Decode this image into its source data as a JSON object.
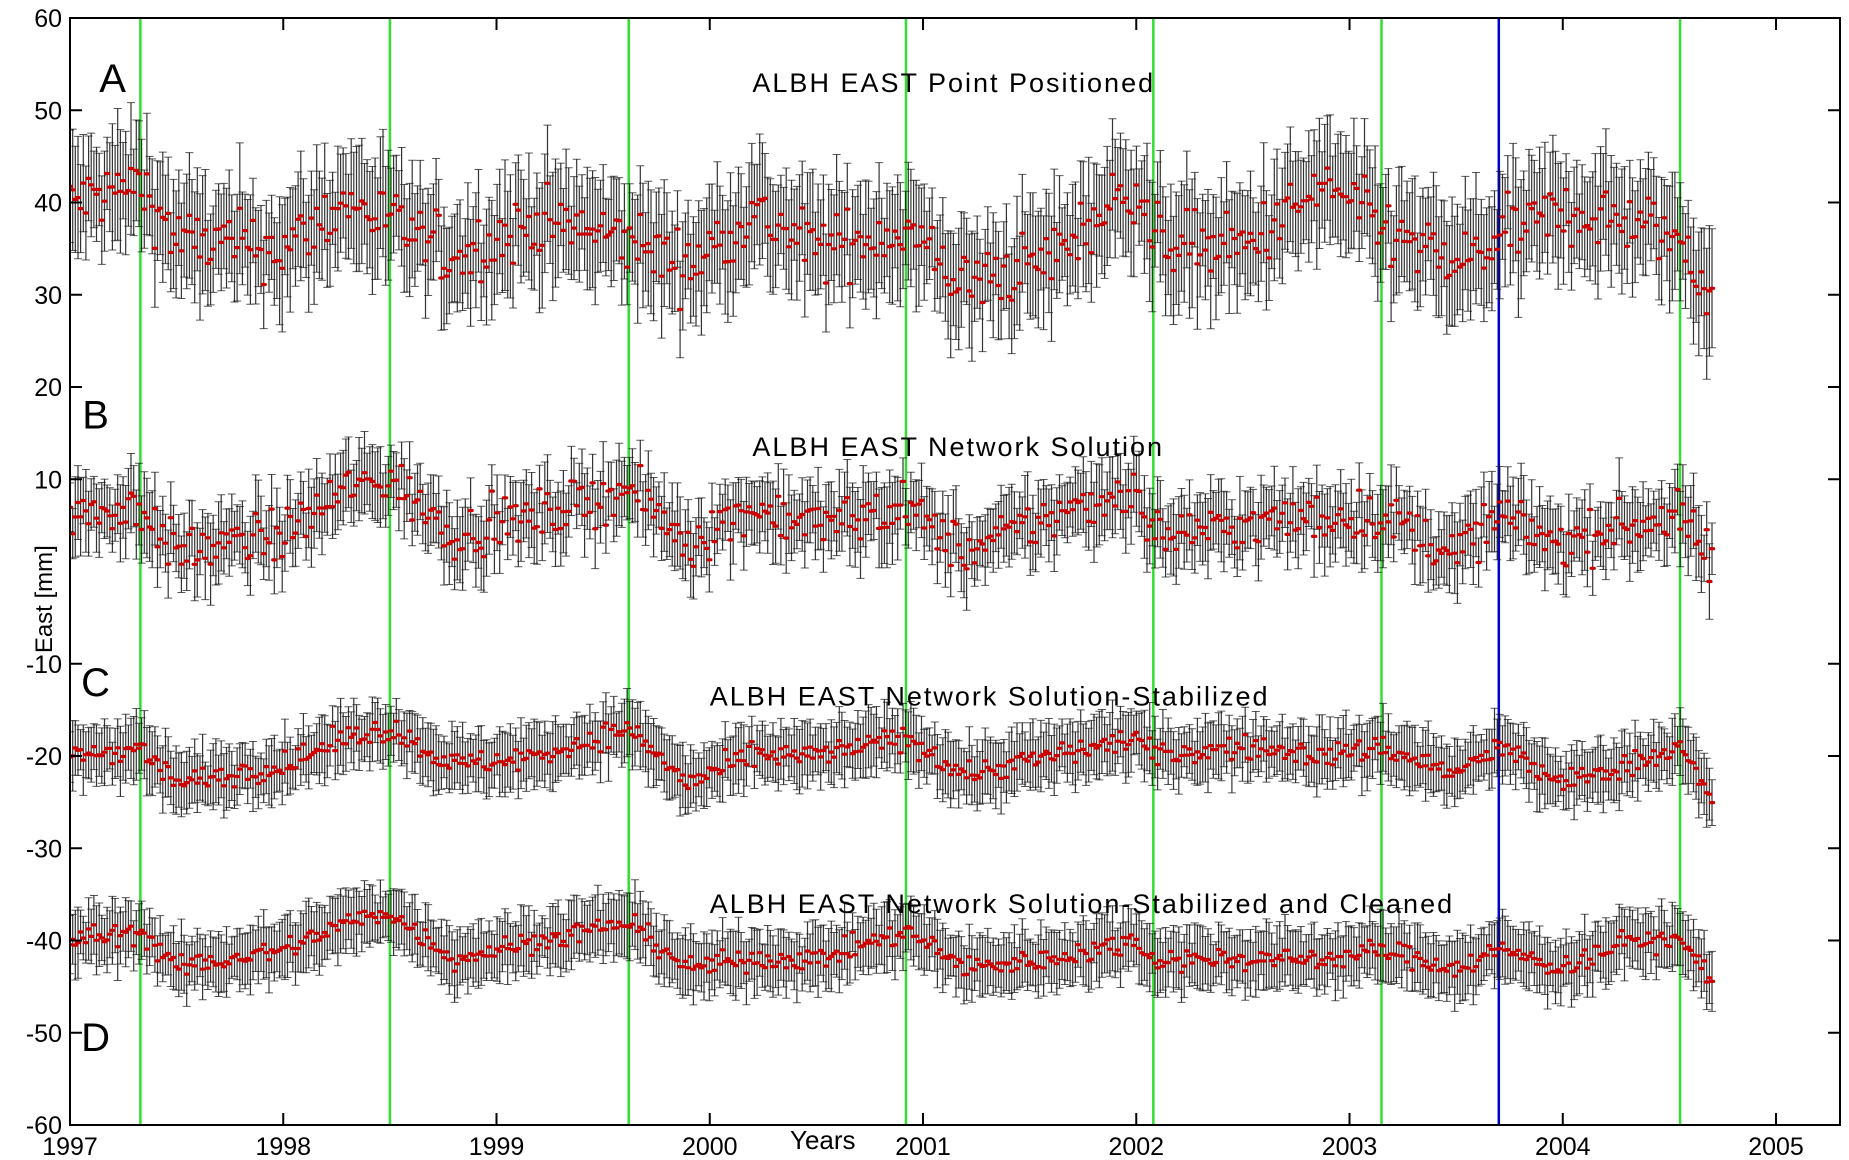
{
  "chart_data": {
    "type": "scatter",
    "xlabel": "Years",
    "ylabel": "East [mm]",
    "xlim": [
      1997,
      2005.3
    ],
    "ylim": [
      -60,
      60
    ],
    "xticks": [
      1997,
      1998,
      1999,
      2000,
      2001,
      2002,
      2003,
      2004,
      2005
    ],
    "xtick_labels": [
      "1997",
      "1998",
      "1999",
      "2000",
      "2001",
      "2002",
      "2003",
      "2004",
      "2005"
    ],
    "yticks": [
      60,
      50,
      40,
      30,
      20,
      10,
      -10,
      -20,
      -30,
      -40,
      -50,
      -60
    ],
    "ytick_labels": [
      "60",
      "50",
      "40",
      "30",
      "20",
      "10",
      "-10",
      "-20",
      "-30",
      "-40",
      "-50",
      "-60"
    ],
    "grid": false,
    "legend": "none",
    "marker_color": "#cc0000",
    "errorbar_color": "#111111",
    "vertical_lines": [
      {
        "x": 1997.33,
        "color": "#33dd33"
      },
      {
        "x": 1998.5,
        "color": "#33dd33"
      },
      {
        "x": 1999.62,
        "color": "#33dd33"
      },
      {
        "x": 2000.92,
        "color": "#33dd33"
      },
      {
        "x": 2002.08,
        "color": "#33dd33"
      },
      {
        "x": 2003.15,
        "color": "#33dd33"
      },
      {
        "x": 2003.7,
        "color": "#0000cc"
      },
      {
        "x": 2004.55,
        "color": "#33dd33"
      }
    ],
    "panels": [
      {
        "letter": "A",
        "title": "ALBH EAST Point Positioned",
        "letter_pos": [
          1997.2,
          52
        ],
        "title_pos": [
          2000.2,
          52
        ],
        "noise": 3.2,
        "errorbar": 5.5,
        "series": {
          "x": [
            1997.0,
            1997.33,
            1997.5,
            1998.0,
            1998.3,
            1998.5,
            1998.8,
            1999.2,
            1999.62,
            1999.9,
            2000.2,
            2000.5,
            2000.92,
            2001.2,
            2001.6,
            2002.0,
            2002.08,
            2002.5,
            2002.9,
            2003.15,
            2003.5,
            2003.7,
            2004.0,
            2004.3,
            2004.55,
            2004.7
          ],
          "y": [
            40,
            42,
            36,
            35,
            40,
            38,
            34,
            38,
            36,
            33,
            39,
            35,
            37,
            31,
            34,
            42,
            36,
            35,
            42,
            37,
            33,
            36,
            39,
            38,
            36,
            30
          ]
        }
      },
      {
        "letter": "B",
        "title": "ALBH EAST Network Solution",
        "letter_pos": [
          1997.12,
          15.5
        ],
        "title_pos": [
          2000.2,
          12.5
        ],
        "noise": 2.4,
        "errorbar": 3.5,
        "series": {
          "x": [
            1997.0,
            1997.33,
            1997.5,
            1998.0,
            1998.3,
            1998.5,
            1998.8,
            1999.2,
            1999.62,
            1999.9,
            2000.2,
            2000.5,
            2000.92,
            2001.2,
            2001.6,
            2002.0,
            2002.08,
            2002.5,
            2002.9,
            2003.15,
            2003.5,
            2003.7,
            2004.0,
            2004.3,
            2004.55,
            2004.7
          ],
          "y": [
            6,
            7,
            2,
            4,
            9,
            10,
            4,
            6,
            9,
            3,
            7,
            5,
            7,
            2,
            6,
            9,
            4,
            5,
            6,
            6,
            2,
            6,
            3,
            5,
            6,
            1
          ]
        }
      },
      {
        "letter": "C",
        "title": "ALBH EAST Network Solution-Stabilized",
        "letter_pos": [
          1997.12,
          -13.5
        ],
        "title_pos": [
          2000.0,
          -14.5
        ],
        "noise": 1.2,
        "errorbar": 3.0,
        "series": {
          "x": [
            1997.0,
            1997.33,
            1997.5,
            1998.0,
            1998.3,
            1998.5,
            1998.8,
            1999.2,
            1999.62,
            1999.9,
            2000.2,
            2000.5,
            2000.92,
            2001.2,
            2001.6,
            2002.0,
            2002.08,
            2002.5,
            2002.9,
            2003.15,
            2003.5,
            2003.7,
            2004.0,
            2004.3,
            2004.55,
            2004.7
          ],
          "y": [
            -20,
            -19,
            -23,
            -21,
            -18,
            -17,
            -21,
            -20,
            -17,
            -23,
            -20,
            -20,
            -18,
            -22,
            -20,
            -18,
            -20,
            -19,
            -20,
            -19,
            -22,
            -19,
            -23,
            -21,
            -19,
            -25
          ]
        }
      },
      {
        "letter": "D",
        "title": "ALBH EAST Network Solution-Stabilized and Cleaned",
        "letter_pos": [
          1997.12,
          -52
        ],
        "title_pos": [
          2000.0,
          -37
        ],
        "noise": 1.1,
        "errorbar": 3.0,
        "series": {
          "x": [
            1997.0,
            1997.33,
            1997.5,
            1998.0,
            1998.3,
            1998.5,
            1998.8,
            1999.2,
            1999.62,
            1999.9,
            2000.2,
            2000.5,
            2000.92,
            2001.2,
            2001.6,
            2002.0,
            2002.08,
            2002.5,
            2002.9,
            2003.15,
            2003.5,
            2003.7,
            2004.0,
            2004.3,
            2004.55,
            2004.7
          ],
          "y": [
            -40,
            -39,
            -43,
            -41,
            -38,
            -37,
            -42,
            -40,
            -38,
            -43,
            -42,
            -42,
            -39,
            -43,
            -42,
            -40,
            -42,
            -42,
            -42,
            -41,
            -43,
            -41,
            -43,
            -40,
            -40,
            -44
          ]
        }
      }
    ]
  }
}
